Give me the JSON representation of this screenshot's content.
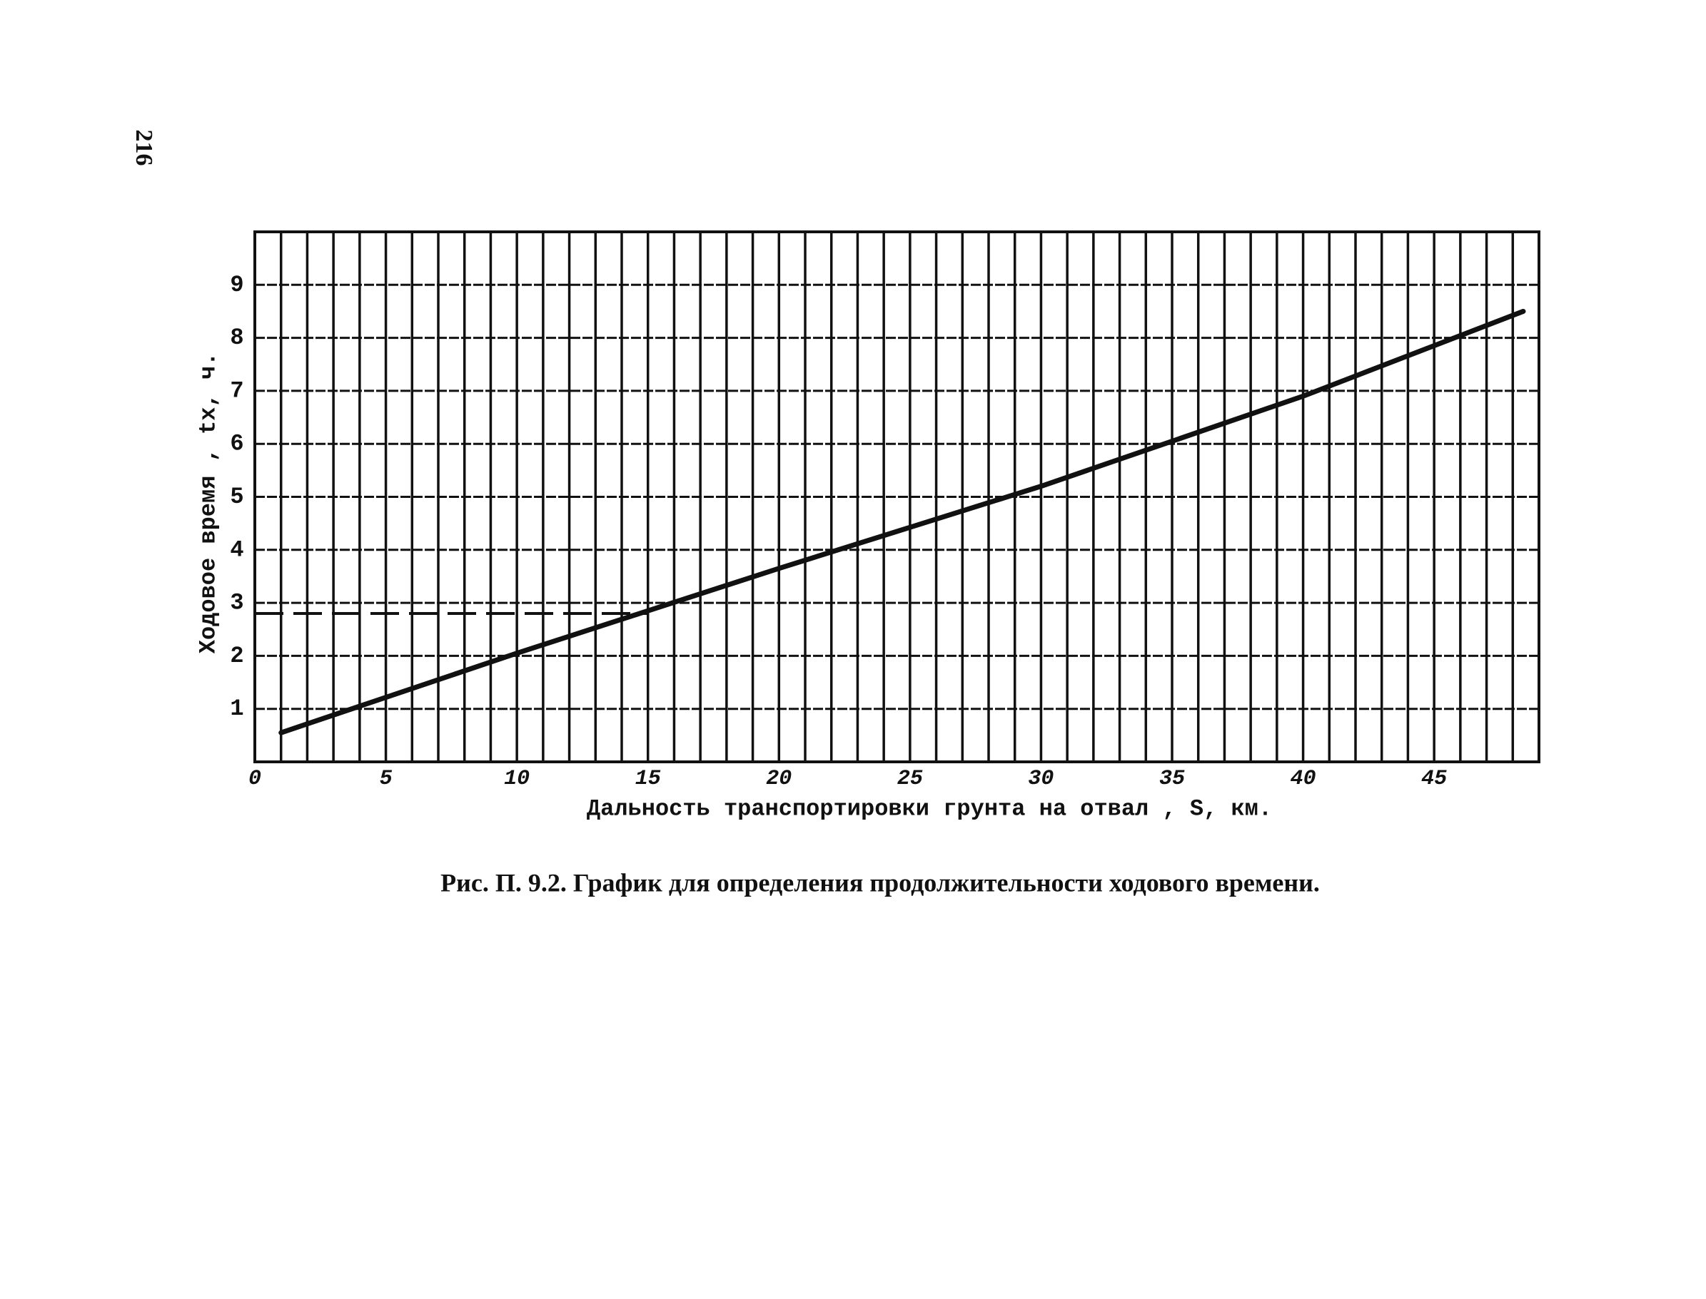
{
  "page_number": "216",
  "chart_data": {
    "type": "line",
    "title": "Рис. П. 9.2. График для определения продолжительности ходового времени.",
    "x_label": "Дальность транспортировки грунта на отвал , S, км.",
    "y_label": "Ходовое время , tх, ч.",
    "xlim": [
      0,
      49
    ],
    "ylim": [
      0,
      10
    ],
    "xticks": [
      0,
      5,
      10,
      15,
      20,
      25,
      30,
      35,
      40,
      45
    ],
    "yticks": [
      1,
      2,
      3,
      4,
      5,
      6,
      7,
      8,
      9
    ],
    "xgrid": [
      0,
      1,
      2,
      3,
      4,
      5,
      6,
      7,
      8,
      9,
      10,
      11,
      12,
      13,
      14,
      15,
      16,
      17,
      18,
      19,
      20,
      21,
      22,
      23,
      24,
      25,
      26,
      27,
      28,
      29,
      30,
      31,
      32,
      33,
      34,
      35,
      36,
      37,
      38,
      39,
      40,
      41,
      42,
      43,
      44,
      45,
      46,
      47,
      48,
      49
    ],
    "ygrid": [
      0,
      1,
      2,
      3,
      4,
      5,
      6,
      7,
      8,
      9,
      10
    ],
    "grid": true,
    "series": [
      {
        "color": "#111111",
        "x": [
          1,
          10,
          20,
          30,
          40,
          48.4
        ],
        "values": [
          0.55,
          2.05,
          3.65,
          5.2,
          6.9,
          8.5
        ]
      }
    ],
    "reference_line": {
      "x": [
        0,
        15
      ],
      "values": [
        2.8,
        2.8
      ],
      "color": "#111111",
      "dashed": true
    }
  }
}
